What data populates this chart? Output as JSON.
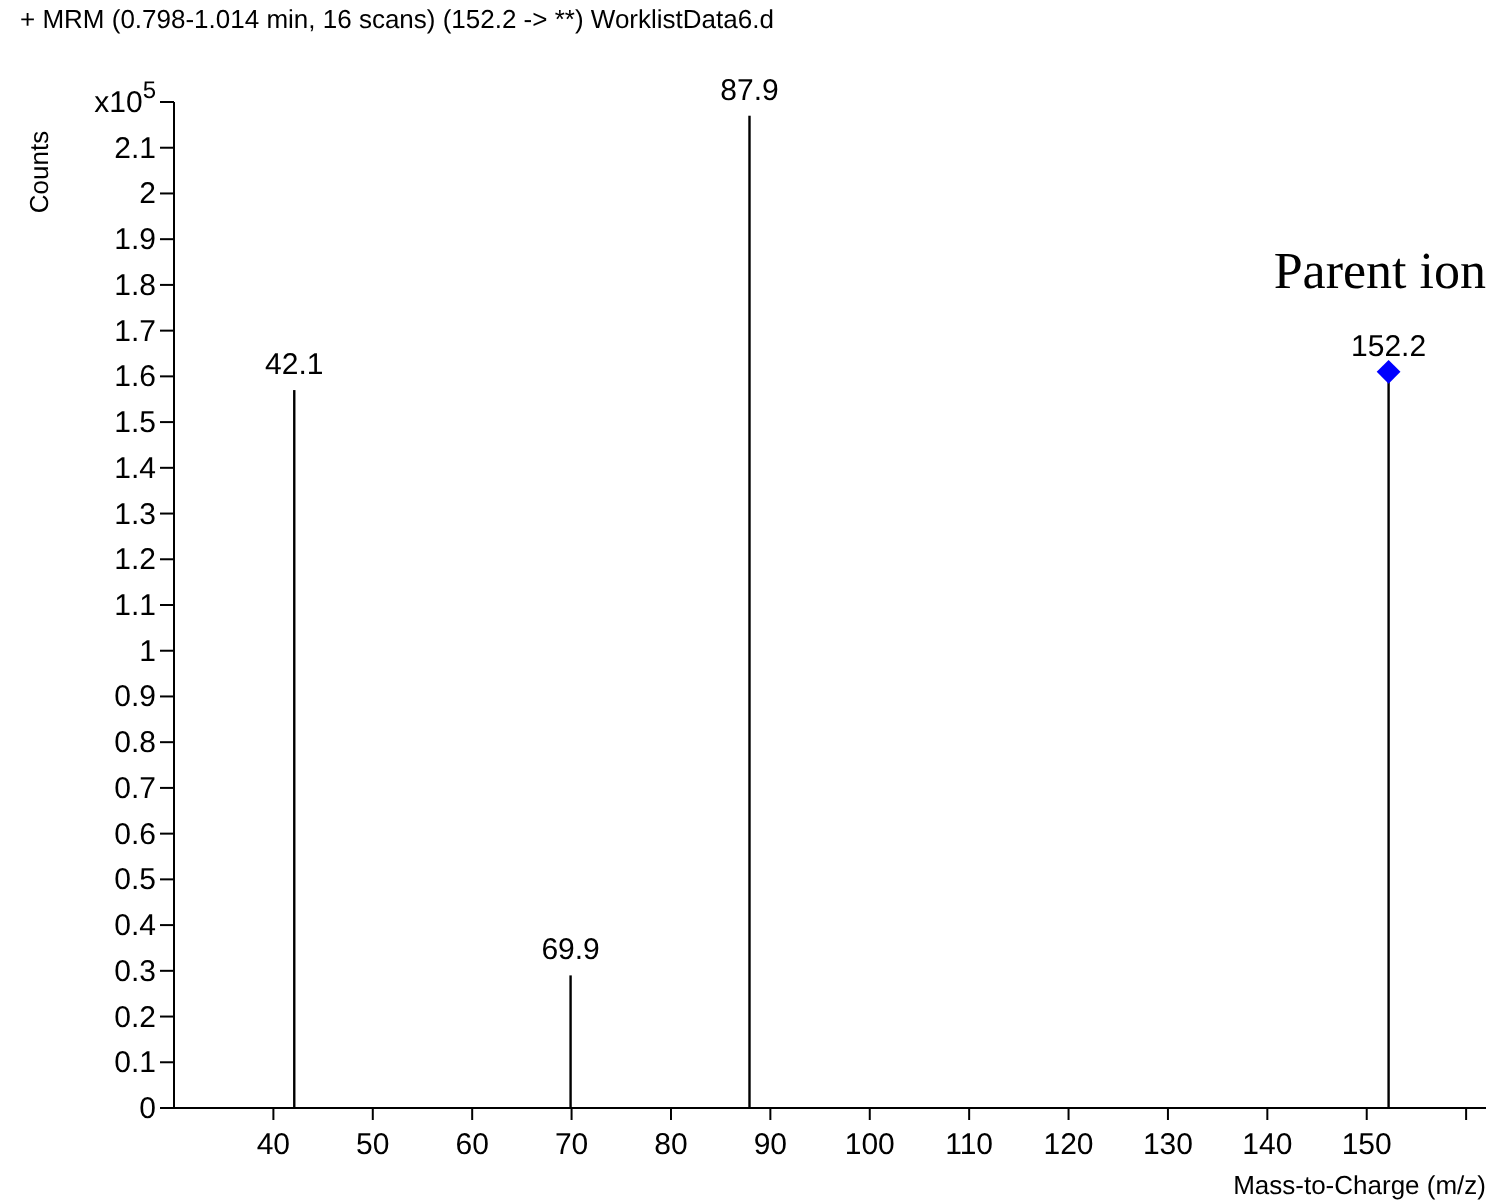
{
  "chart_data": {
    "type": "bar",
    "title": "+ MRM (0.798-1.014 min, 16 scans) (152.2 -> **) WorklistData6.d",
    "xlabel": "Mass-to-Charge (m/z)",
    "ylabel": "Counts",
    "series": [
      {
        "color": "#000000",
        "x": [
          42.1,
          69.9,
          87.9
        ],
        "values": [
          1.57,
          0.29,
          2.17
        ]
      },
      {
        "type": "lollipop",
        "color": "#0000ff",
        "marker": "diamond",
        "x": [
          152.2
        ],
        "values": [
          1.61
        ]
      }
    ],
    "xlim": [
      30,
      162
    ],
    "xticks": [
      40,
      50,
      60,
      70,
      80,
      90,
      100,
      110,
      120,
      130,
      140,
      150,
      {
        "value": 160,
        "label": null
      }
    ],
    "ylim": [
      0,
      2.2
    ],
    "yticks": [
      0,
      0.1,
      0.2,
      0.3,
      0.4,
      0.5,
      0.6,
      0.7,
      0.8,
      0.9,
      1,
      1.1,
      1.2,
      1.3,
      1.4,
      1.5,
      1.6,
      1.7,
      1.8,
      1.9,
      2,
      2.1,
      {
        "value": 2.2,
        "label": "x10$^{5}$"
      }
    ],
    "grid": false,
    "annotations": [
      {
        "text": "42.1",
        "x": 42.1,
        "y": 1.57
      },
      {
        "text": "69.9",
        "x": 69.9,
        "y": 0.29
      },
      {
        "text": "87.9",
        "x": 87.9,
        "y": 2.17
      },
      {
        "text": "152.2",
        "x": 152.2,
        "y": 1.61
      },
      "Parent ion"
    ]
  }
}
